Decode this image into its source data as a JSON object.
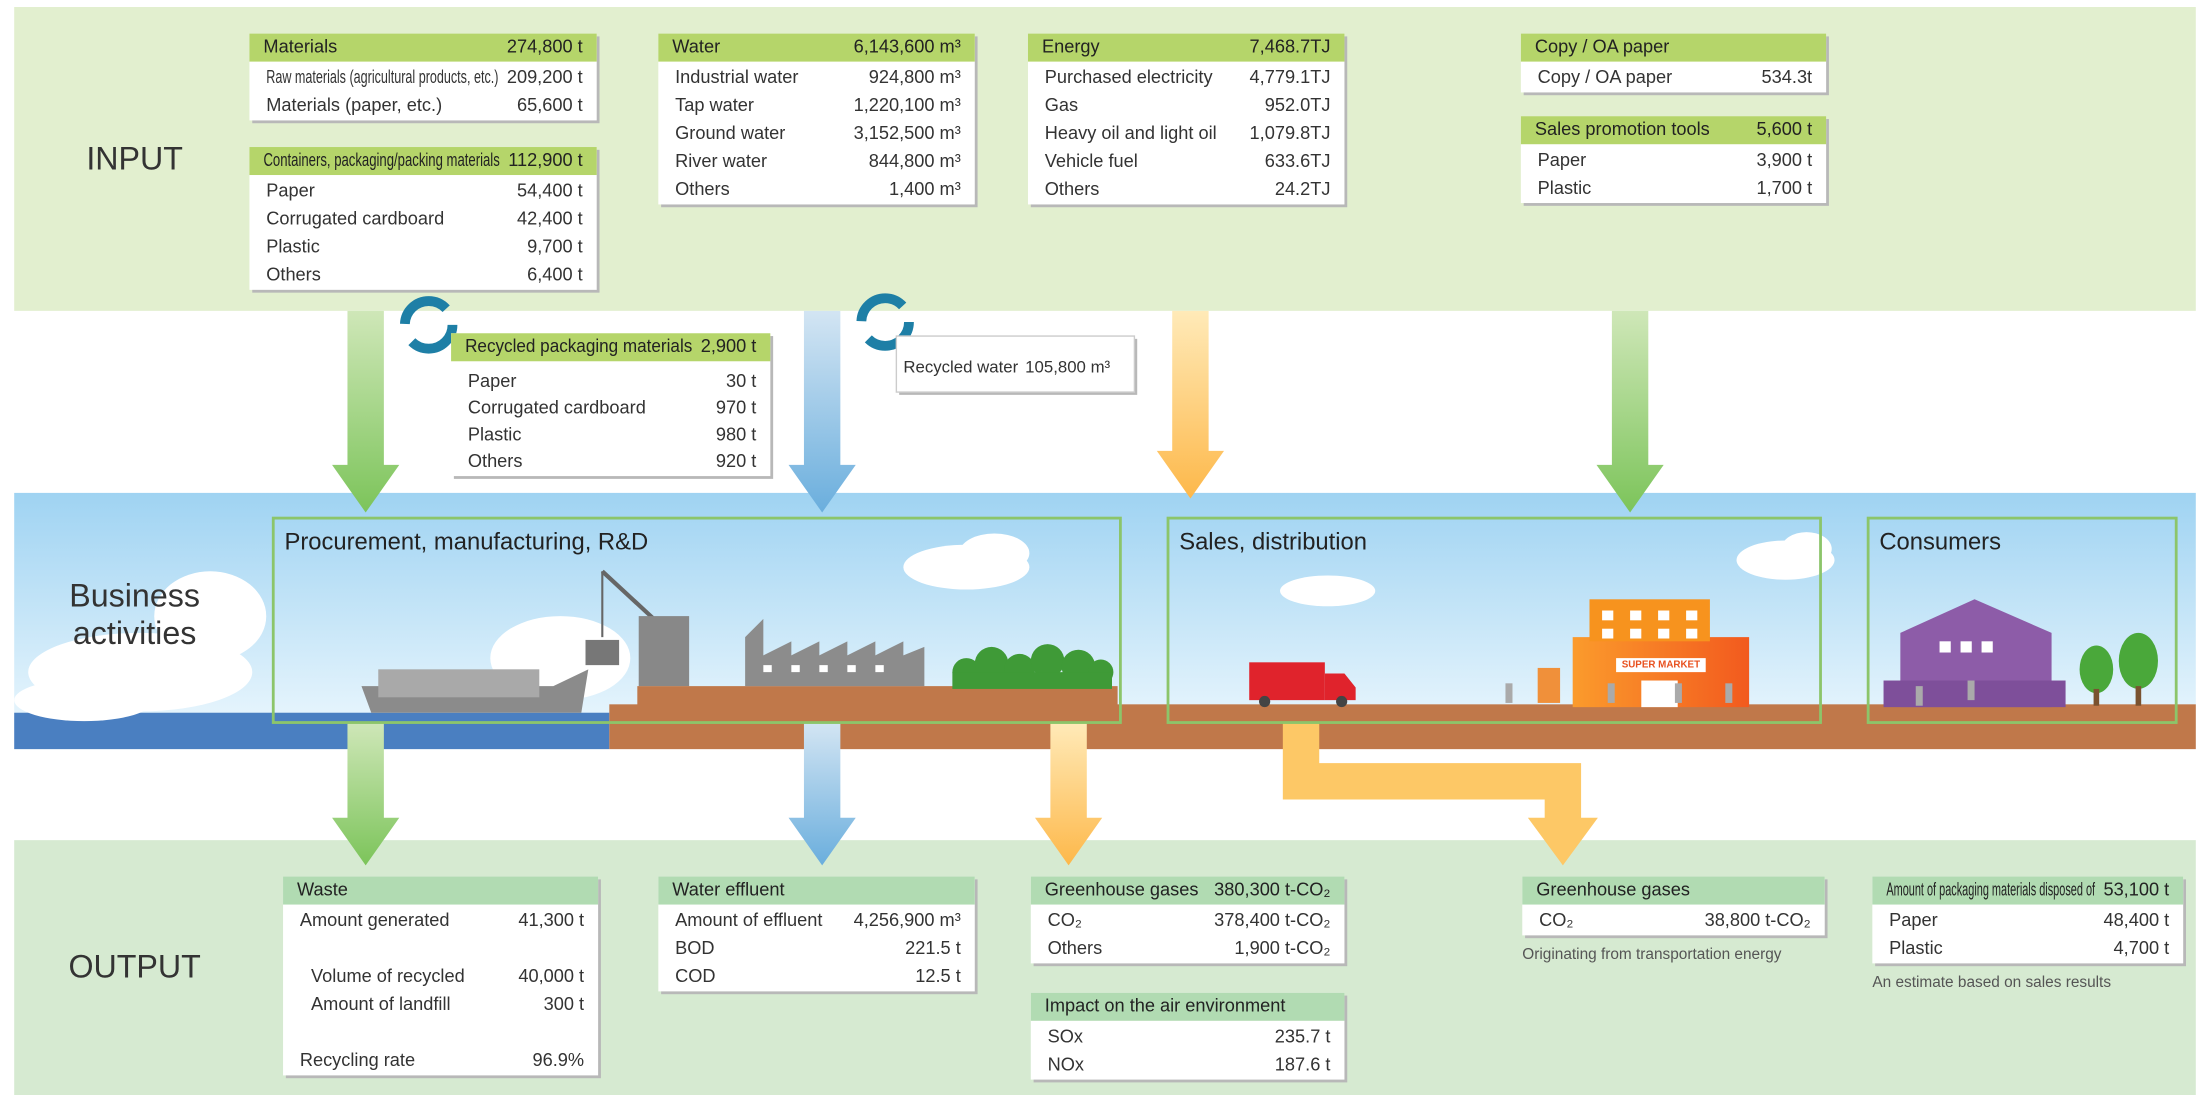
{
  "sections": {
    "input": "INPUT",
    "business": [
      "Business",
      "activities"
    ],
    "output": "OUTPUT"
  },
  "input_boxes": [
    {
      "title": "Materials",
      "total": "274,800 t",
      "rows": [
        {
          "label": "Raw materials (agricultural products, etc.)",
          "value": "209,200 t"
        },
        {
          "label": "Materials (paper, etc.)",
          "value": "65,600 t"
        }
      ]
    },
    {
      "title": "Containers, packaging/packing materials",
      "total": "112,900 t",
      "rows": [
        {
          "label": "Paper",
          "value": "54,400 t"
        },
        {
          "label": "Corrugated cardboard",
          "value": "42,400 t"
        },
        {
          "label": "Plastic",
          "value": "9,700 t"
        },
        {
          "label": "Others",
          "value": "6,400 t"
        }
      ]
    },
    {
      "title": "Water",
      "total": "6,143,600 m³",
      "rows": [
        {
          "label": "Industrial water",
          "value": "924,800 m³"
        },
        {
          "label": "Tap water",
          "value": "1,220,100 m³"
        },
        {
          "label": "Ground water",
          "value": "3,152,500 m³"
        },
        {
          "label": "River water",
          "value": "844,800 m³"
        },
        {
          "label": "Others",
          "value": "1,400 m³"
        }
      ]
    },
    {
      "title": "Energy",
      "total": "7,468.7TJ",
      "rows": [
        {
          "label": "Purchased electricity",
          "value": "4,779.1TJ"
        },
        {
          "label": "Gas",
          "value": "952.0TJ"
        },
        {
          "label": "Heavy oil and light oil",
          "value": "1,079.8TJ"
        },
        {
          "label": "Vehicle fuel",
          "value": "633.6TJ"
        },
        {
          "label": "Others",
          "value": "24.2TJ"
        }
      ]
    },
    {
      "title": "Copy / OA paper",
      "rows": [
        {
          "label": "Copy / OA paper",
          "value": "534.3t"
        }
      ]
    },
    {
      "title": "Sales promotion tools",
      "total": "5,600 t",
      "rows": [
        {
          "label": "Paper",
          "value": "3,900 t"
        },
        {
          "label": "Plastic",
          "value": "1,700 t"
        }
      ]
    },
    {
      "title": "Recycled packaging materials",
      "total": "2,900 t",
      "rows": [
        {
          "label": "Paper",
          "value": "30 t"
        },
        {
          "label": "Corrugated cardboard",
          "value": "970 t"
        },
        {
          "label": "Plastic",
          "value": "980 t"
        },
        {
          "label": "Others",
          "value": "920 t"
        }
      ]
    }
  ],
  "recycled_water": {
    "label": "Recycled water",
    "value": "105,800 m³"
  },
  "activities": [
    "Procurement, manufacturing, R&D",
    "Sales, distribution",
    "Consumers"
  ],
  "store_sign": "SUPER MARKET",
  "output_boxes": [
    {
      "title": "Waste",
      "rows": [
        {
          "label": "Amount generated",
          "value": "41,300 t"
        },
        {
          "label": "Volume of recycled",
          "value": "40,000 t"
        },
        {
          "label": "Amount of landfill",
          "value": "300 t"
        },
        {
          "label": "Recycling rate",
          "value": "96.9%"
        }
      ]
    },
    {
      "title": "Water effluent",
      "rows": [
        {
          "label": "Amount of effluent",
          "value": "4,256,900 m³"
        },
        {
          "label": "BOD",
          "value": "221.5 t"
        },
        {
          "label": "COD",
          "value": "12.5 t"
        }
      ]
    },
    {
      "title": "Greenhouse gases",
      "total": "380,300 t-CO₂",
      "rows": [
        {
          "label": "CO₂",
          "value": "378,400 t-CO₂"
        },
        {
          "label": "Others",
          "value": "1,900 t-CO₂"
        }
      ]
    },
    {
      "title": "Impact on the air environment",
      "rows": [
        {
          "label": "SOx",
          "value": "235.7 t"
        },
        {
          "label": "NOx",
          "value": "187.6 t"
        }
      ]
    },
    {
      "title": "Greenhouse gases",
      "rows": [
        {
          "label": "CO₂",
          "value": "38,800 t-CO₂"
        }
      ],
      "note": "Originating from transportation energy"
    },
    {
      "title": "Amount of packaging materials disposed of",
      "total": "53,100 t",
      "rows": [
        {
          "label": "Paper",
          "value": "48,400 t"
        },
        {
          "label": "Plastic",
          "value": "4,700 t"
        }
      ],
      "note": "An estimate based on sales results"
    }
  ]
}
